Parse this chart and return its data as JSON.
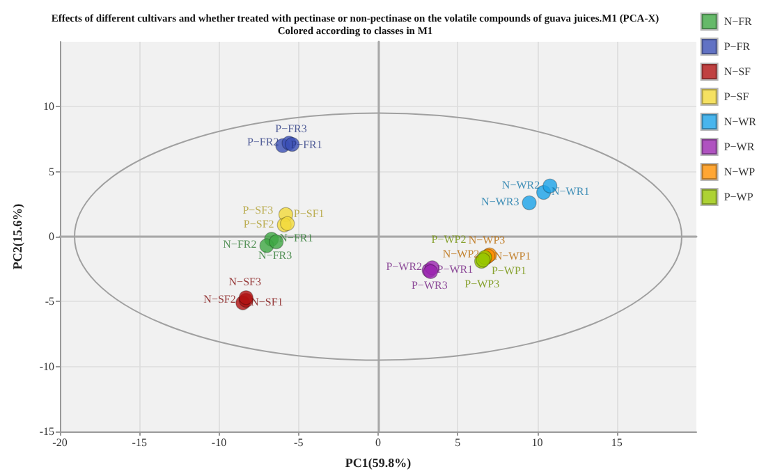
{
  "chart_data": {
    "type": "scatter",
    "title": "Effects of different cultivars and whether treated with pectinase or non-pectinase on the volatile compounds of guava juices.M1 (PCA-X)",
    "subtitle": "Colored according to classes in M1",
    "xlabel": "PC1(59.8%)",
    "ylabel": "PC2(15.6%)",
    "xlim": [
      -20,
      20
    ],
    "xticks": [
      -20,
      -15,
      -10,
      -5,
      0,
      5,
      10,
      15
    ],
    "ylim": [
      -15,
      15
    ],
    "yticks": [
      -15,
      -10,
      -5,
      0,
      5,
      10
    ],
    "grid": true,
    "legend": "top right",
    "marker": "circle",
    "series": [
      {
        "name": "N−FR",
        "color": "#3fa844",
        "x": [
          -6.7,
          -7.0,
          -6.4
        ],
        "values": [
          -0.2,
          -0.7,
          -0.4
        ],
        "value_labels": [
          "N−FR1",
          "N−FR2",
          "N−FR3"
        ]
      },
      {
        "name": "P−FR",
        "color": "#3a4fb5",
        "x": [
          -6.0,
          -5.6,
          -5.4
        ],
        "values": [
          7.0,
          7.2,
          7.1
        ],
        "value_labels": [
          "P−FR1",
          "P−FR2",
          "P−FR3"
        ]
      },
      {
        "name": "N−SF",
        "color": "#b01212",
        "x": [
          -8.5,
          -8.3,
          -8.3
        ],
        "values": [
          -5.1,
          -4.9,
          -4.7
        ],
        "value_labels": [
          "N−SF1",
          "N−SF2",
          "N−SF3"
        ]
      },
      {
        "name": "P−SF",
        "color": "#f2d93a",
        "x": [
          -5.8,
          -5.9,
          -5.7
        ],
        "values": [
          1.7,
          0.9,
          1.0
        ],
        "value_labels": [
          "P−SF1",
          "P−SF2",
          "P−SF3"
        ]
      },
      {
        "name": "N−WR",
        "color": "#1aa3e8",
        "x": [
          10.4,
          10.8,
          9.5
        ],
        "values": [
          3.4,
          3.9,
          2.6
        ],
        "value_labels": [
          "N−WR1",
          "N−WR2",
          "N−WR3"
        ]
      },
      {
        "name": "P−WR",
        "color": "#9b27b0",
        "x": [
          3.2,
          3.4,
          3.3
        ],
        "values": [
          -2.6,
          -2.4,
          -2.7
        ],
        "value_labels": [
          "P−WR1",
          "P−WR2",
          "P−WR3"
        ]
      },
      {
        "name": "N−WP",
        "color": "#ff9000",
        "x": [
          6.8,
          7.0,
          6.9
        ],
        "values": [
          -1.6,
          -1.4,
          -1.5
        ],
        "value_labels": [
          "N−WP1",
          "N−WP2",
          "N−WP3"
        ]
      },
      {
        "name": "P−WP",
        "color": "#99c700",
        "x": [
          6.5,
          6.7,
          6.6
        ],
        "values": [
          -1.9,
          -1.6,
          -1.8
        ],
        "value_labels": [
          "P−WP1",
          "P−WP2",
          "P−WP3"
        ]
      }
    ]
  }
}
